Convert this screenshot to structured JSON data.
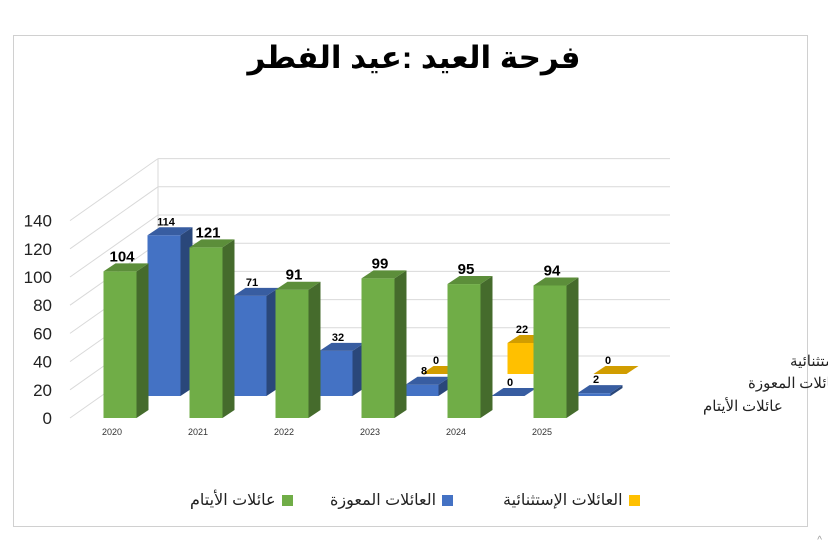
{
  "chart_data": {
    "type": "bar",
    "title": "فرحة العيد :عيد الفطر",
    "categories": [
      "2020",
      "2021",
      "2022",
      "2023",
      "2024",
      "2025"
    ],
    "series": [
      {
        "name": "عائلات الأيتام",
        "values": [
          104,
          121,
          91,
          99,
          95,
          94
        ],
        "color": "#70ad47"
      },
      {
        "name": "العائلات المعوزة",
        "values": [
          114,
          71,
          32,
          8,
          0,
          2
        ],
        "color": "#4472c4"
      },
      {
        "name": "العائلات الإستثنائية",
        "values": [
          0,
          0,
          0,
          0,
          22,
          0
        ],
        "color": "#ffc000"
      }
    ],
    "ylim": [
      0,
      140
    ],
    "yticks": [
      "0",
      "20",
      "40",
      "60",
      "80",
      "100",
      "120",
      "140"
    ],
    "grid": true,
    "legend_position": "bottom",
    "depth_labels": [
      "العائلات الإستثنائية",
      "العائلات المعوزة",
      "عائلات الأيتام"
    ],
    "style": "3d"
  },
  "ui": {
    "scroll_glyph": "^"
  }
}
